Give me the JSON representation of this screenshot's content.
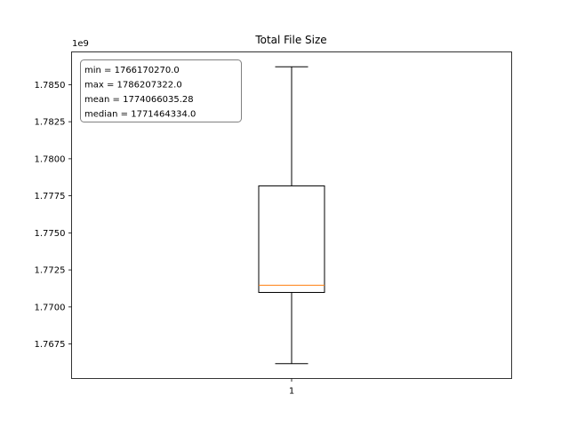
{
  "chart_data": {
    "type": "boxplot",
    "title": "Total File Size",
    "xlabel": "",
    "ylabel": "",
    "y_offset_label": "1e9",
    "y_scale_factor": 1000000000,
    "ylim": [
      1765170000,
      1787210000
    ],
    "yticks": [
      1767500000,
      1770000000,
      1772500000,
      1775000000,
      1777500000,
      1780000000,
      1782500000,
      1785000000
    ],
    "ytick_labels": [
      "1.7675",
      "1.7700",
      "1.7725",
      "1.7750",
      "1.7775",
      "1.7800",
      "1.7825",
      "1.7850"
    ],
    "categories": [
      "1"
    ],
    "boxes": [
      {
        "category": "1",
        "whisker_low": 1766170270,
        "q1": 1770980000,
        "median": 1771464334,
        "q3": 1778170000,
        "whisker_high": 1786207322
      }
    ],
    "stats_box": [
      "min = 1766170270.0",
      "max = 1786207322.0",
      "mean = 1774066035.28",
      "median = 1771464334.0"
    ],
    "colors": {
      "box": "#000000",
      "median": "#ff7f0e",
      "stats_border": "#808080"
    },
    "grid": false,
    "legend": "none"
  }
}
